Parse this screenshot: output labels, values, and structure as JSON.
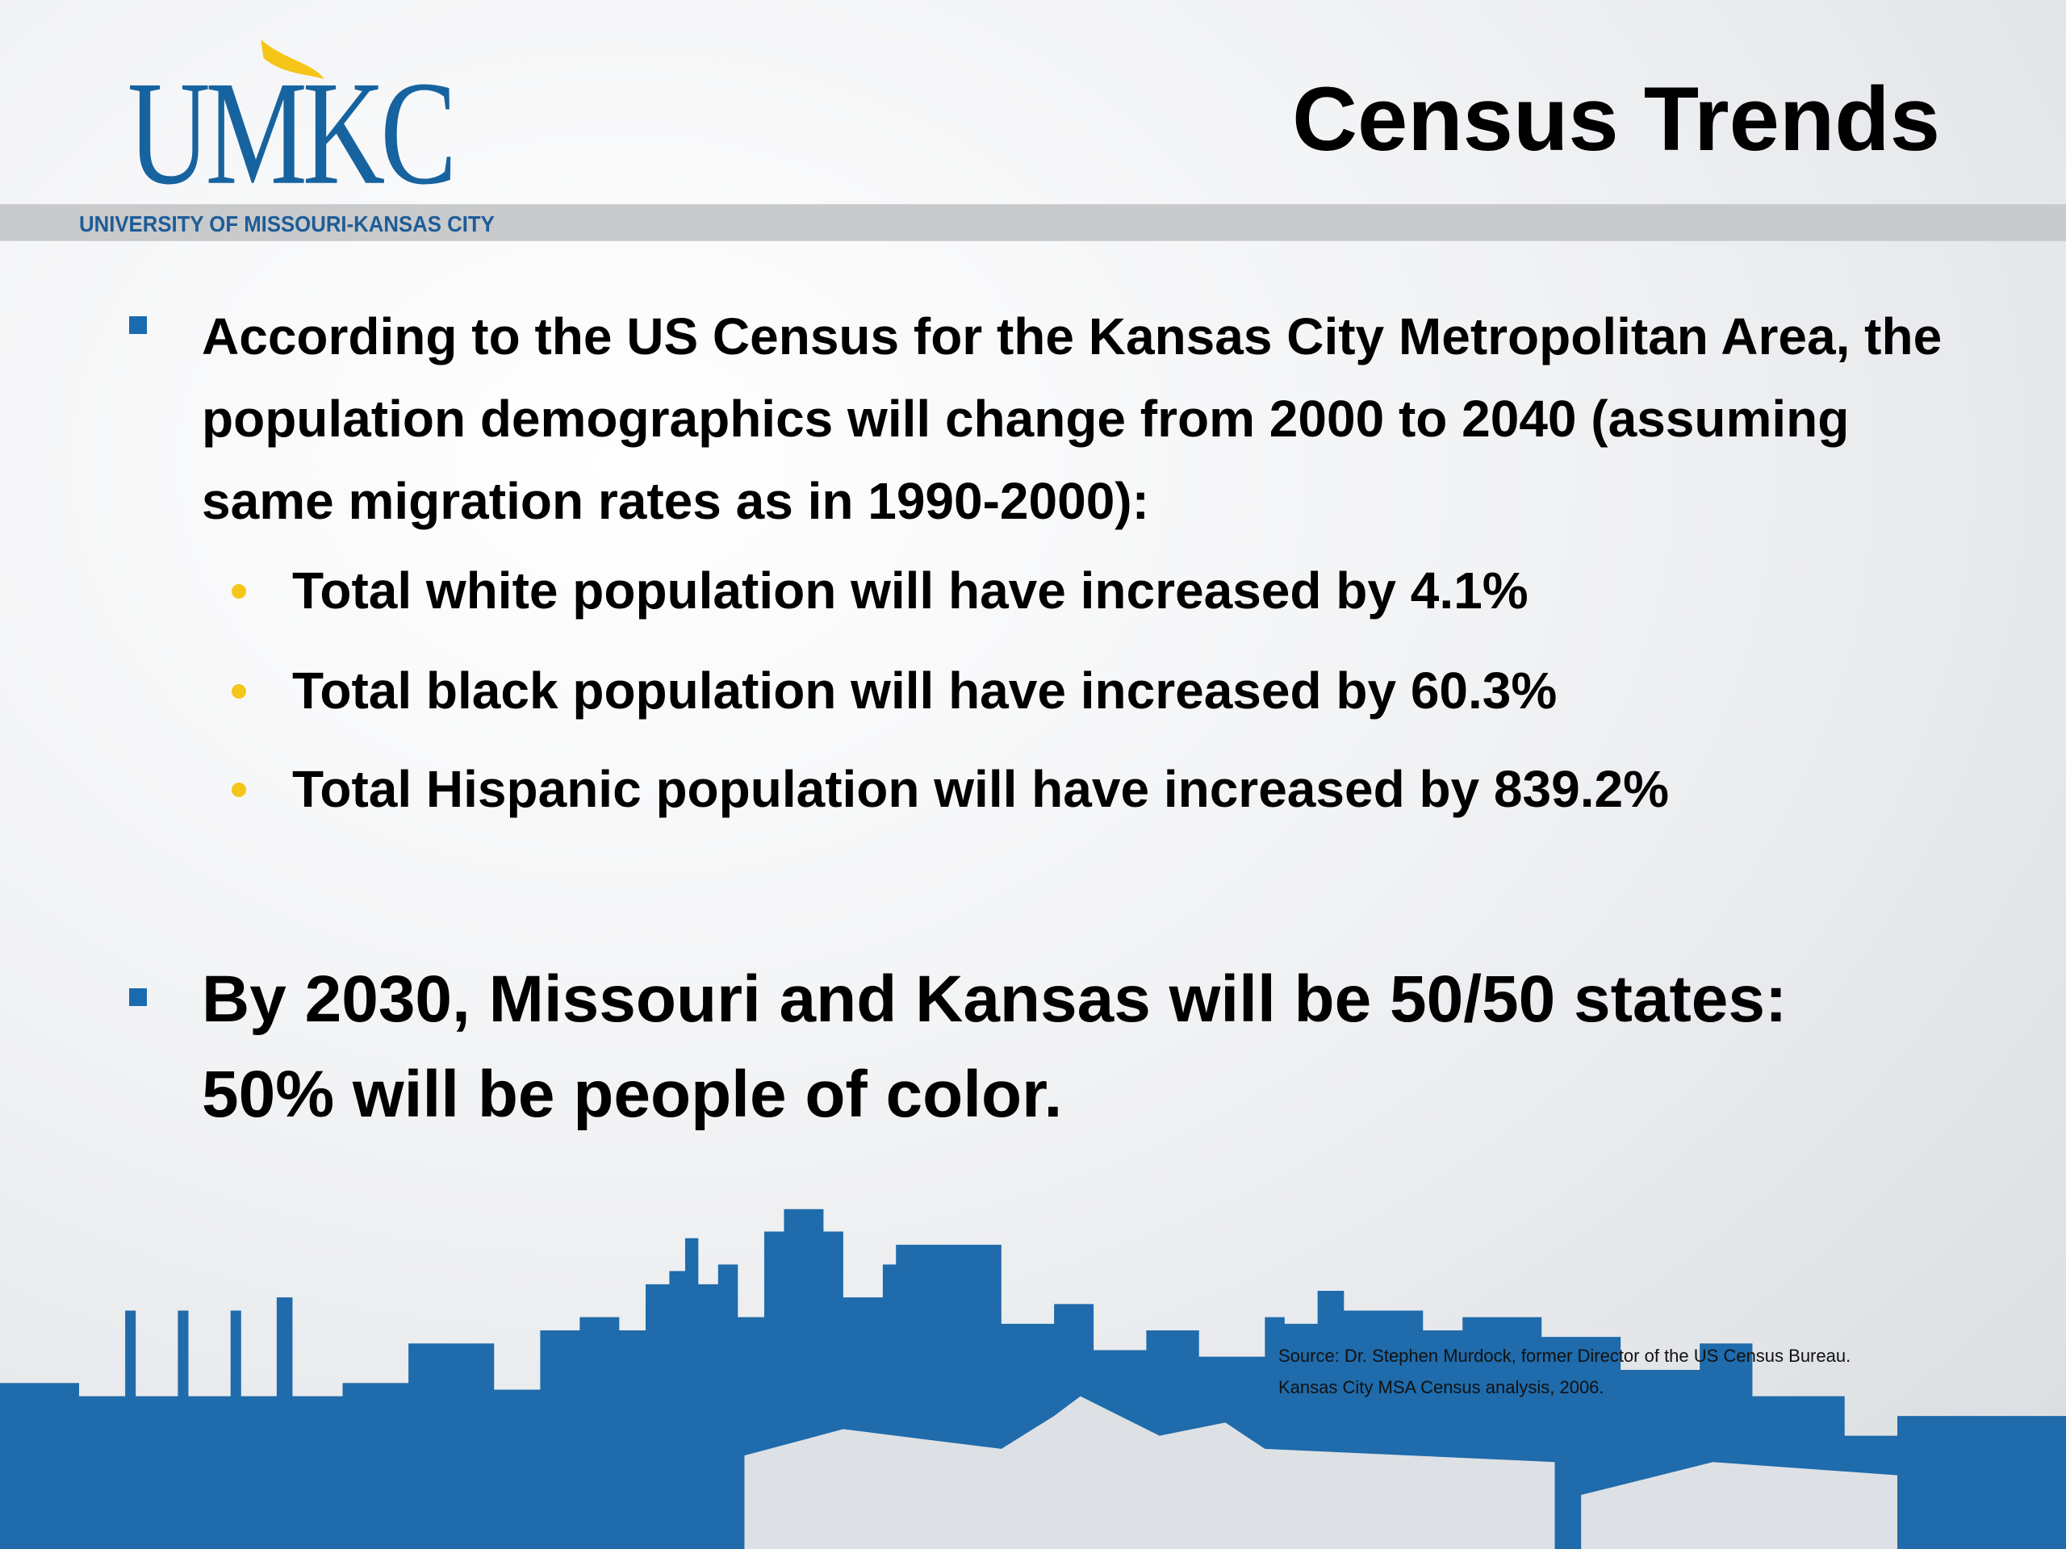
{
  "header": {
    "logo": "UMKC",
    "logo_subtitle": "UNIVERSITY OF MISSOURI-KANSAS CITY",
    "title": "Census Trends"
  },
  "bullets": [
    {
      "text": "According to the US Census for the Kansas City Metropolitan Area, the population demographics will change from 2000 to 2040 (assuming same migration rates as in 1990-2000):",
      "sub_bullets": [
        "Total white population will have increased by 4.1%",
        "Total black population will have increased by 60.3%",
        "Total Hispanic population will have increased by 839.2%"
      ]
    },
    {
      "text": "By 2030, Missouri and Kansas will be 50/50 states: 50% will be people of color."
    }
  ],
  "source": [
    "Source:  Dr. Stephen Murdock, former Director of the US Census Bureau.",
    "Kansas City MSA Census analysis, 2006."
  ]
}
